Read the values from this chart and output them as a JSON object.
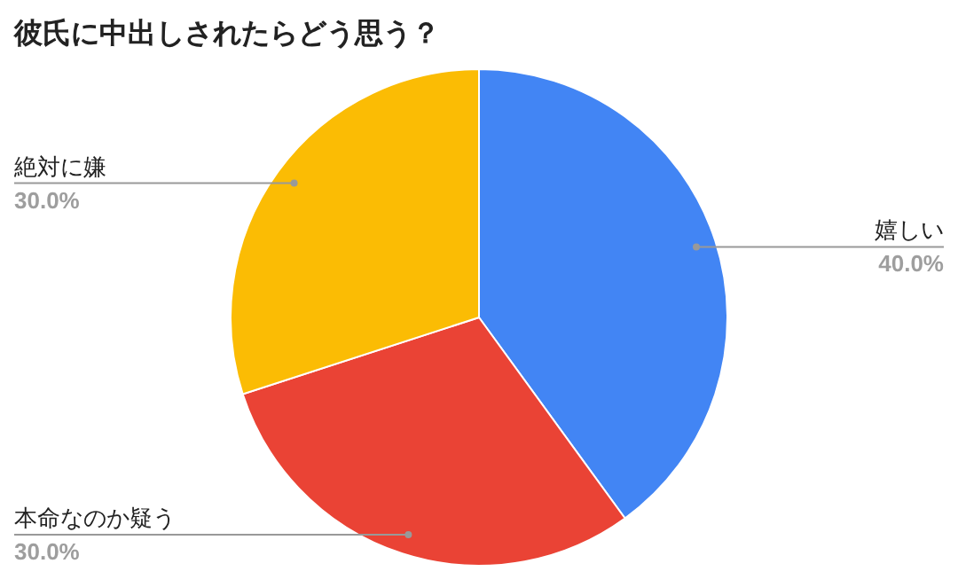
{
  "chart_data": {
    "type": "pie",
    "title": "彼氏に中出しされたらどう思う？",
    "categories": [
      "嬉しい",
      "本命なのか疑う",
      "絶対に嫌"
    ],
    "values": [
      40,
      30,
      30
    ],
    "value_labels": [
      "40.0%",
      "30.0%",
      "30.0%"
    ],
    "colors": [
      "#4285f4",
      "#ea4335",
      "#fbbc04"
    ]
  }
}
